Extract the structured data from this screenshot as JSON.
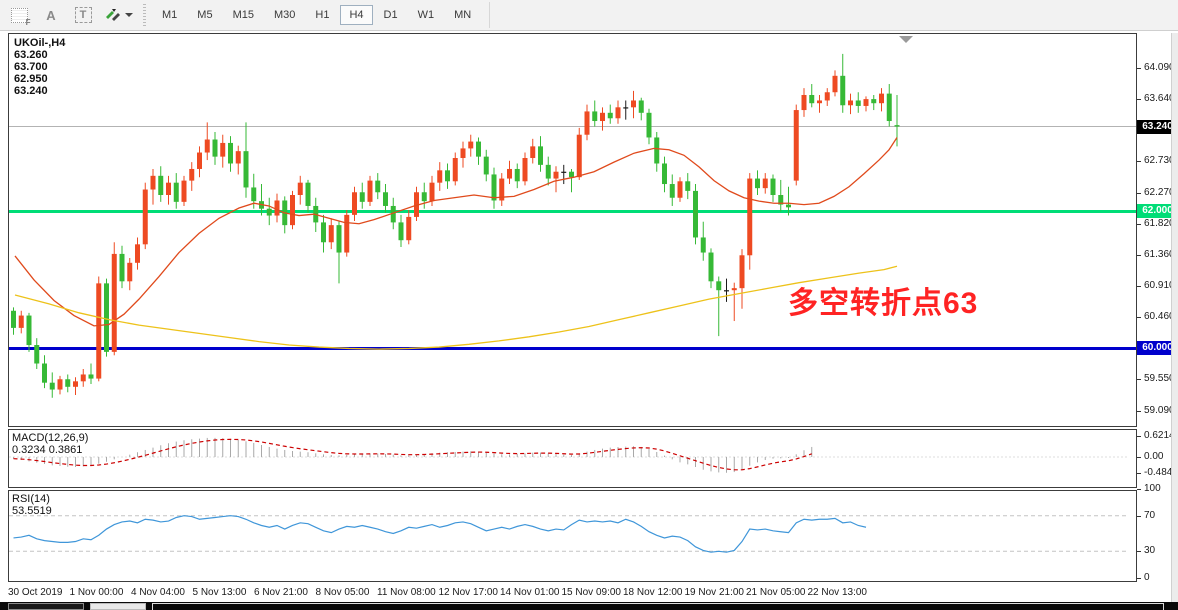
{
  "toolbar": {
    "grid_icon_label": "F",
    "font_icon_label": "A",
    "text_icon_label": "T",
    "timeframes": [
      "M1",
      "M5",
      "M15",
      "M30",
      "H1",
      "H4",
      "D1",
      "W1",
      "MN"
    ],
    "selected_timeframe": "H4"
  },
  "chart": {
    "title": "UKOil-,H4  63.260 63.700 62.950 63.240",
    "annotation": "多空转折点63",
    "annotation_color": "#ff2323"
  },
  "price_axis": {
    "ticks": [
      "64.090",
      "63.640",
      "62.730",
      "62.270",
      "61.820",
      "61.360",
      "60.910",
      "60.460",
      "59.550",
      "59.090"
    ],
    "badges": [
      {
        "label": "63.240",
        "bg": "#000000"
      },
      {
        "label": "62.000",
        "bg": "#00dd77"
      },
      {
        "label": "60.000",
        "bg": "#0000cc"
      }
    ]
  },
  "time_axis": {
    "labels": [
      "30 Oct 2019",
      "1 Nov 00:00",
      "4 Nov 04:00",
      "5 Nov 13:00",
      "6 Nov 21:00",
      "8 Nov 05:00",
      "11 Nov 08:00",
      "12 Nov 17:00",
      "14 Nov 01:00",
      "15 Nov 09:00",
      "18 Nov 12:00",
      "19 Nov 21:00",
      "21 Nov 05:00",
      "22 Nov 13:00"
    ]
  },
  "indicators": {
    "macd": {
      "label": "MACD(12,26,9) 0.3234 0.3861",
      "axis": [
        "0.6214",
        "0.00",
        "-0.4843"
      ]
    },
    "rsi": {
      "label": "RSI(14) 53.5519",
      "axis": [
        "100",
        "70",
        "30",
        "0"
      ]
    }
  },
  "chart_data": {
    "type": "candlestick",
    "symbol": "UKOil-",
    "timeframe": "H4",
    "last_ohlc": {
      "open": 63.26,
      "high": 63.7,
      "low": 62.95,
      "close": 63.24
    },
    "colors": {
      "up": "#ee4a22",
      "down": "#36b936",
      "doji": "#1a1a1a",
      "ma_fast": "#e04a1c",
      "ma_slow": "#edc21a",
      "price_line": "#b3b3b3",
      "level_green": "#00dd77",
      "level_blue": "#0000cc",
      "macd_hist": "#a9a9a9",
      "macd_signal": "#cc0000",
      "rsi_line": "#3f96d9"
    },
    "levels": [
      {
        "price": 63.24,
        "color": "#b3b3b3",
        "width": 1
      },
      {
        "price": 62.0,
        "color": "#00dd77",
        "width": 3
      },
      {
        "price": 60.0,
        "color": "#0000cc",
        "width": 3
      }
    ],
    "candles": [
      [
        60.55,
        60.6,
        60.2,
        60.3
      ],
      [
        60.3,
        60.55,
        60.22,
        60.48
      ],
      [
        60.48,
        60.52,
        59.95,
        60.05
      ],
      [
        60.05,
        60.15,
        59.7,
        59.78
      ],
      [
        59.78,
        59.9,
        59.42,
        59.5
      ],
      [
        59.5,
        59.65,
        59.28,
        59.4
      ],
      [
        59.4,
        59.6,
        59.33,
        59.55
      ],
      [
        59.55,
        59.62,
        59.36,
        59.44
      ],
      [
        59.44,
        59.58,
        59.32,
        59.52
      ],
      [
        59.52,
        59.7,
        59.44,
        59.62
      ],
      [
        59.62,
        59.78,
        59.48,
        59.56
      ],
      [
        59.56,
        61.05,
        59.52,
        60.95
      ],
      [
        60.95,
        61.02,
        59.88,
        59.95
      ],
      [
        59.95,
        61.55,
        59.9,
        61.38
      ],
      [
        61.38,
        61.5,
        60.88,
        60.98
      ],
      [
        60.98,
        61.32,
        60.85,
        61.25
      ],
      [
        61.25,
        61.62,
        61.15,
        61.52
      ],
      [
        61.52,
        62.42,
        61.45,
        62.32
      ],
      [
        62.32,
        62.62,
        62.1,
        62.52
      ],
      [
        62.52,
        62.66,
        62.14,
        62.24
      ],
      [
        62.24,
        62.52,
        62.1,
        62.42
      ],
      [
        62.42,
        62.56,
        62.04,
        62.14
      ],
      [
        62.14,
        62.52,
        62.08,
        62.45
      ],
      [
        62.45,
        62.72,
        62.3,
        62.62
      ],
      [
        62.62,
        62.95,
        62.5,
        62.86
      ],
      [
        62.86,
        63.3,
        62.75,
        63.05
      ],
      [
        63.05,
        63.16,
        62.68,
        62.8
      ],
      [
        62.8,
        63.12,
        62.64,
        63.0
      ],
      [
        63.0,
        63.1,
        62.58,
        62.7
      ],
      [
        62.7,
        62.96,
        62.54,
        62.88
      ],
      [
        62.88,
        63.3,
        62.2,
        62.35
      ],
      [
        62.35,
        62.55,
        62.04,
        62.15
      ],
      [
        62.15,
        62.4,
        61.94,
        62.04
      ],
      [
        62.04,
        62.2,
        61.8,
        61.94
      ],
      [
        61.94,
        62.26,
        61.84,
        62.16
      ],
      [
        62.16,
        62.22,
        61.68,
        61.8
      ],
      [
        61.8,
        62.3,
        61.74,
        62.24
      ],
      [
        62.24,
        62.52,
        62.1,
        62.42
      ],
      [
        62.42,
        62.46,
        61.98,
        62.08
      ],
      [
        62.08,
        62.2,
        61.7,
        61.84
      ],
      [
        61.84,
        61.95,
        61.4,
        61.55
      ],
      [
        61.55,
        61.9,
        61.45,
        61.8
      ],
      [
        61.8,
        61.86,
        60.95,
        61.4
      ],
      [
        61.4,
        62.02,
        61.34,
        61.95
      ],
      [
        61.95,
        62.36,
        61.86,
        62.28
      ],
      [
        62.28,
        62.42,
        62.04,
        62.14
      ],
      [
        62.14,
        62.52,
        62.08,
        62.45
      ],
      [
        62.45,
        62.56,
        62.18,
        62.28
      ],
      [
        62.28,
        62.4,
        61.98,
        62.08
      ],
      [
        62.08,
        62.2,
        61.74,
        61.84
      ],
      [
        61.84,
        61.95,
        61.48,
        61.58
      ],
      [
        61.58,
        62.02,
        61.52,
        61.92
      ],
      [
        61.92,
        62.36,
        61.86,
        62.28
      ],
      [
        62.28,
        62.42,
        62.04,
        62.15
      ],
      [
        62.15,
        62.52,
        62.08,
        62.42
      ],
      [
        62.42,
        62.72,
        62.3,
        62.6
      ],
      [
        62.6,
        62.7,
        62.33,
        62.44
      ],
      [
        62.44,
        62.86,
        62.38,
        62.78
      ],
      [
        62.78,
        63.02,
        62.64,
        62.92
      ],
      [
        62.92,
        63.12,
        62.8,
        63.02
      ],
      [
        63.02,
        63.08,
        62.68,
        62.8
      ],
      [
        62.8,
        62.9,
        62.44,
        62.54
      ],
      [
        62.54,
        62.64,
        62.04,
        62.16
      ],
      [
        62.16,
        62.56,
        62.08,
        62.48
      ],
      [
        62.48,
        62.74,
        62.4,
        62.62
      ],
      [
        62.62,
        62.7,
        62.34,
        62.44
      ],
      [
        62.44,
        62.86,
        62.38,
        62.78
      ],
      [
        62.78,
        63.06,
        62.7,
        62.95
      ],
      [
        62.95,
        63.1,
        62.58,
        62.68
      ],
      [
        62.68,
        62.8,
        62.38,
        62.48
      ],
      [
        62.48,
        62.66,
        62.28,
        62.58
      ],
      [
        62.58,
        62.68,
        62.4,
        62.58
      ],
      [
        62.58,
        62.62,
        62.28,
        62.5
      ],
      [
        62.5,
        63.22,
        62.46,
        63.12
      ],
      [
        63.12,
        63.56,
        63.04,
        63.46
      ],
      [
        63.46,
        63.62,
        63.24,
        63.32
      ],
      [
        63.32,
        63.52,
        63.18,
        63.44
      ],
      [
        63.44,
        63.56,
        63.28,
        63.36
      ],
      [
        63.36,
        63.62,
        63.28,
        63.52
      ],
      [
        63.52,
        63.62,
        63.34,
        63.52
      ],
      [
        63.52,
        63.76,
        63.36,
        63.62
      ],
      [
        63.62,
        63.66,
        63.33,
        63.44
      ],
      [
        63.44,
        63.5,
        62.98,
        63.08
      ],
      [
        63.08,
        63.16,
        62.58,
        62.7
      ],
      [
        62.7,
        62.8,
        62.28,
        62.4
      ],
      [
        62.4,
        62.54,
        62.08,
        62.2
      ],
      [
        62.2,
        62.5,
        62.14,
        62.44
      ],
      [
        62.44,
        62.56,
        62.18,
        62.3
      ],
      [
        62.3,
        62.4,
        61.52,
        61.62
      ],
      [
        61.62,
        61.85,
        61.28,
        61.4
      ],
      [
        61.4,
        61.46,
        60.88,
        60.98
      ],
      [
        60.98,
        61.05,
        60.18,
        60.85
      ],
      [
        60.85,
        61.02,
        60.68,
        60.85
      ],
      [
        60.85,
        60.96,
        60.4,
        60.88
      ],
      [
        60.88,
        61.45,
        60.58,
        61.36
      ],
      [
        61.36,
        62.56,
        61.15,
        62.48
      ],
      [
        62.48,
        62.6,
        62.24,
        62.34
      ],
      [
        62.34,
        62.56,
        62.26,
        62.48
      ],
      [
        62.48,
        62.54,
        62.14,
        62.24
      ],
      [
        62.24,
        62.46,
        62.0,
        62.1
      ],
      [
        62.1,
        62.36,
        61.94,
        62.06
      ],
      [
        62.45,
        63.56,
        62.38,
        63.48
      ],
      [
        63.48,
        63.8,
        63.38,
        63.7
      ],
      [
        63.7,
        63.86,
        63.52,
        63.58
      ],
      [
        63.58,
        63.7,
        63.44,
        63.62
      ],
      [
        63.62,
        63.8,
        63.54,
        63.74
      ],
      [
        63.74,
        64.06,
        63.68,
        63.98
      ],
      [
        63.98,
        64.3,
        63.44,
        63.55
      ],
      [
        63.55,
        63.72,
        63.42,
        63.62
      ],
      [
        63.62,
        63.74,
        63.44,
        63.54
      ],
      [
        63.54,
        63.68,
        63.46,
        63.64
      ],
      [
        63.64,
        63.7,
        63.48,
        63.58
      ],
      [
        63.58,
        63.8,
        63.46,
        63.72
      ],
      [
        63.72,
        63.86,
        63.24,
        63.32
      ],
      [
        63.26,
        63.7,
        62.95,
        63.24
      ]
    ],
    "ma_fast": [
      [
        6,
        61.35
      ],
      [
        25,
        61.0
      ],
      [
        45,
        60.7
      ],
      [
        65,
        60.48
      ],
      [
        85,
        60.33
      ],
      [
        100,
        60.35
      ],
      [
        115,
        60.5
      ],
      [
        130,
        60.72
      ],
      [
        150,
        61.05
      ],
      [
        170,
        61.4
      ],
      [
        190,
        61.68
      ],
      [
        210,
        61.9
      ],
      [
        230,
        62.05
      ],
      [
        245,
        62.12
      ],
      [
        260,
        62.08
      ],
      [
        275,
        61.98
      ],
      [
        290,
        61.94
      ],
      [
        305,
        61.96
      ],
      [
        320,
        61.9
      ],
      [
        335,
        61.84
      ],
      [
        350,
        61.82
      ],
      [
        365,
        61.88
      ],
      [
        385,
        61.98
      ],
      [
        405,
        62.08
      ],
      [
        425,
        62.16
      ],
      [
        445,
        62.2
      ],
      [
        465,
        62.24
      ],
      [
        485,
        62.2
      ],
      [
        505,
        62.22
      ],
      [
        525,
        62.32
      ],
      [
        545,
        62.44
      ],
      [
        565,
        62.5
      ],
      [
        585,
        62.58
      ],
      [
        605,
        62.72
      ],
      [
        625,
        62.85
      ],
      [
        645,
        62.92
      ],
      [
        660,
        62.9
      ],
      [
        675,
        62.82
      ],
      [
        690,
        62.65
      ],
      [
        705,
        62.45
      ],
      [
        720,
        62.3
      ],
      [
        735,
        62.2
      ],
      [
        750,
        62.15
      ],
      [
        765,
        62.12
      ],
      [
        780,
        62.12
      ],
      [
        795,
        62.1
      ],
      [
        810,
        62.12
      ],
      [
        825,
        62.22
      ],
      [
        840,
        62.36
      ],
      [
        855,
        62.55
      ],
      [
        870,
        62.75
      ],
      [
        880,
        62.9
      ],
      [
        888,
        63.08
      ]
    ],
    "ma_slow": [
      [
        6,
        60.78
      ],
      [
        40,
        60.65
      ],
      [
        70,
        60.52
      ],
      [
        100,
        60.42
      ],
      [
        130,
        60.34
      ],
      [
        160,
        60.28
      ],
      [
        190,
        60.22
      ],
      [
        220,
        60.16
      ],
      [
        250,
        60.1
      ],
      [
        280,
        60.05
      ],
      [
        310,
        60.02
      ],
      [
        340,
        60.0
      ],
      [
        370,
        59.99
      ],
      [
        400,
        60.0
      ],
      [
        430,
        60.02
      ],
      [
        460,
        60.06
      ],
      [
        490,
        60.11
      ],
      [
        520,
        60.17
      ],
      [
        550,
        60.24
      ],
      [
        580,
        60.32
      ],
      [
        610,
        60.42
      ],
      [
        640,
        60.52
      ],
      [
        670,
        60.62
      ],
      [
        700,
        60.72
      ],
      [
        730,
        60.8
      ],
      [
        760,
        60.88
      ],
      [
        790,
        60.96
      ],
      [
        820,
        61.03
      ],
      [
        850,
        61.1
      ],
      [
        875,
        61.15
      ],
      [
        888,
        61.2
      ]
    ],
    "macd": {
      "params": [
        12,
        26,
        9
      ],
      "value": 0.3234,
      "signal_value": 0.3861,
      "axis_max": 0.6214,
      "axis_min": -0.4843,
      "values": [
        -0.05,
        -0.09,
        -0.13,
        -0.17,
        -0.21,
        -0.25,
        -0.27,
        -0.29,
        -0.3,
        -0.28,
        -0.25,
        -0.2,
        -0.14,
        -0.07,
        0.0,
        0.07,
        0.14,
        0.21,
        0.28,
        0.35,
        0.41,
        0.46,
        0.5,
        0.53,
        0.55,
        0.57,
        0.57,
        0.56,
        0.54,
        0.51,
        0.47,
        0.42,
        0.36,
        0.3,
        0.25,
        0.21,
        0.18,
        0.16,
        0.14,
        0.11,
        0.08,
        0.06,
        0.05,
        0.06,
        0.08,
        0.09,
        0.1,
        0.1,
        0.09,
        0.07,
        0.05,
        0.05,
        0.07,
        0.09,
        0.11,
        0.13,
        0.14,
        0.15,
        0.16,
        0.17,
        0.16,
        0.13,
        0.1,
        0.08,
        0.08,
        0.09,
        0.11,
        0.13,
        0.13,
        0.11,
        0.09,
        0.07,
        0.06,
        0.1,
        0.16,
        0.21,
        0.25,
        0.28,
        0.3,
        0.31,
        0.32,
        0.3,
        0.24,
        0.15,
        0.04,
        -0.07,
        -0.16,
        -0.22,
        -0.3,
        -0.38,
        -0.43,
        -0.46,
        -0.47,
        -0.45,
        -0.38,
        -0.26,
        -0.16,
        -0.09,
        -0.05,
        -0.04,
        -0.03,
        0.08,
        0.2,
        0.3
      ]
    },
    "rsi": {
      "period": 14,
      "value": 53.5519,
      "overbought": 70,
      "oversold": 30,
      "values": [
        45,
        46,
        48,
        44,
        42,
        41,
        40,
        40,
        41,
        44,
        43,
        48,
        55,
        60,
        63,
        64,
        62,
        66,
        65,
        63,
        64,
        68,
        70,
        69,
        66,
        67,
        68,
        69,
        70,
        69,
        66,
        62,
        59,
        57,
        59,
        55,
        59,
        62,
        61,
        57,
        53,
        51,
        55,
        58,
        57,
        59,
        57,
        55,
        52,
        50,
        53,
        57,
        56,
        58,
        60,
        57,
        59,
        62,
        63,
        61,
        57,
        53,
        55,
        57,
        55,
        58,
        60,
        58,
        55,
        53,
        55,
        54,
        60,
        65,
        63,
        64,
        63,
        64,
        62,
        66,
        63,
        58,
        52,
        48,
        45,
        47,
        46,
        42,
        35,
        31,
        29,
        30,
        29,
        31,
        41,
        55,
        54,
        55,
        53,
        52,
        51,
        62,
        66,
        65,
        66,
        66,
        67,
        62,
        63,
        59,
        57
      ]
    }
  }
}
